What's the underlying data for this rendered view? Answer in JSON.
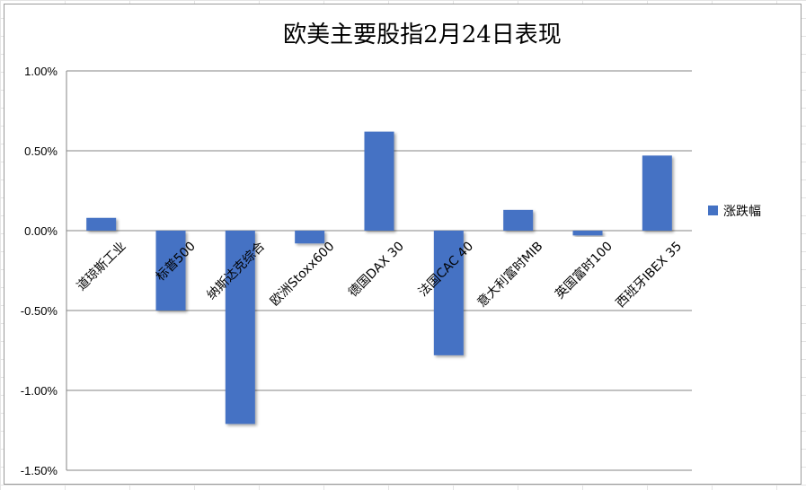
{
  "chart_data": {
    "type": "bar",
    "title": "欧美主要股指2月24日表现",
    "categories": [
      "道琼斯工业",
      "标普500",
      "纳斯达克综合",
      "欧洲Stoxx600",
      "德国DAX 30",
      "法国CAC 40",
      "意大利富时MIB",
      "英国富时100",
      "西班牙IBEX 35"
    ],
    "series": [
      {
        "name": "涨跌幅",
        "color": "#4472C4",
        "values": [
          0.0008,
          -0.005,
          -0.0121,
          -0.0008,
          0.0062,
          -0.0078,
          0.0013,
          -0.0003,
          0.0047
        ]
      }
    ],
    "ylim": [
      -0.015,
      0.01
    ],
    "yticks": [
      0.01,
      0.005,
      0,
      -0.005,
      -0.01,
      -0.015
    ],
    "ytick_labels": [
      "1.00%",
      "0.50%",
      "0.00%",
      "-0.50%",
      "-1.00%",
      "-1.50%"
    ],
    "grid": true,
    "legend": "right"
  }
}
